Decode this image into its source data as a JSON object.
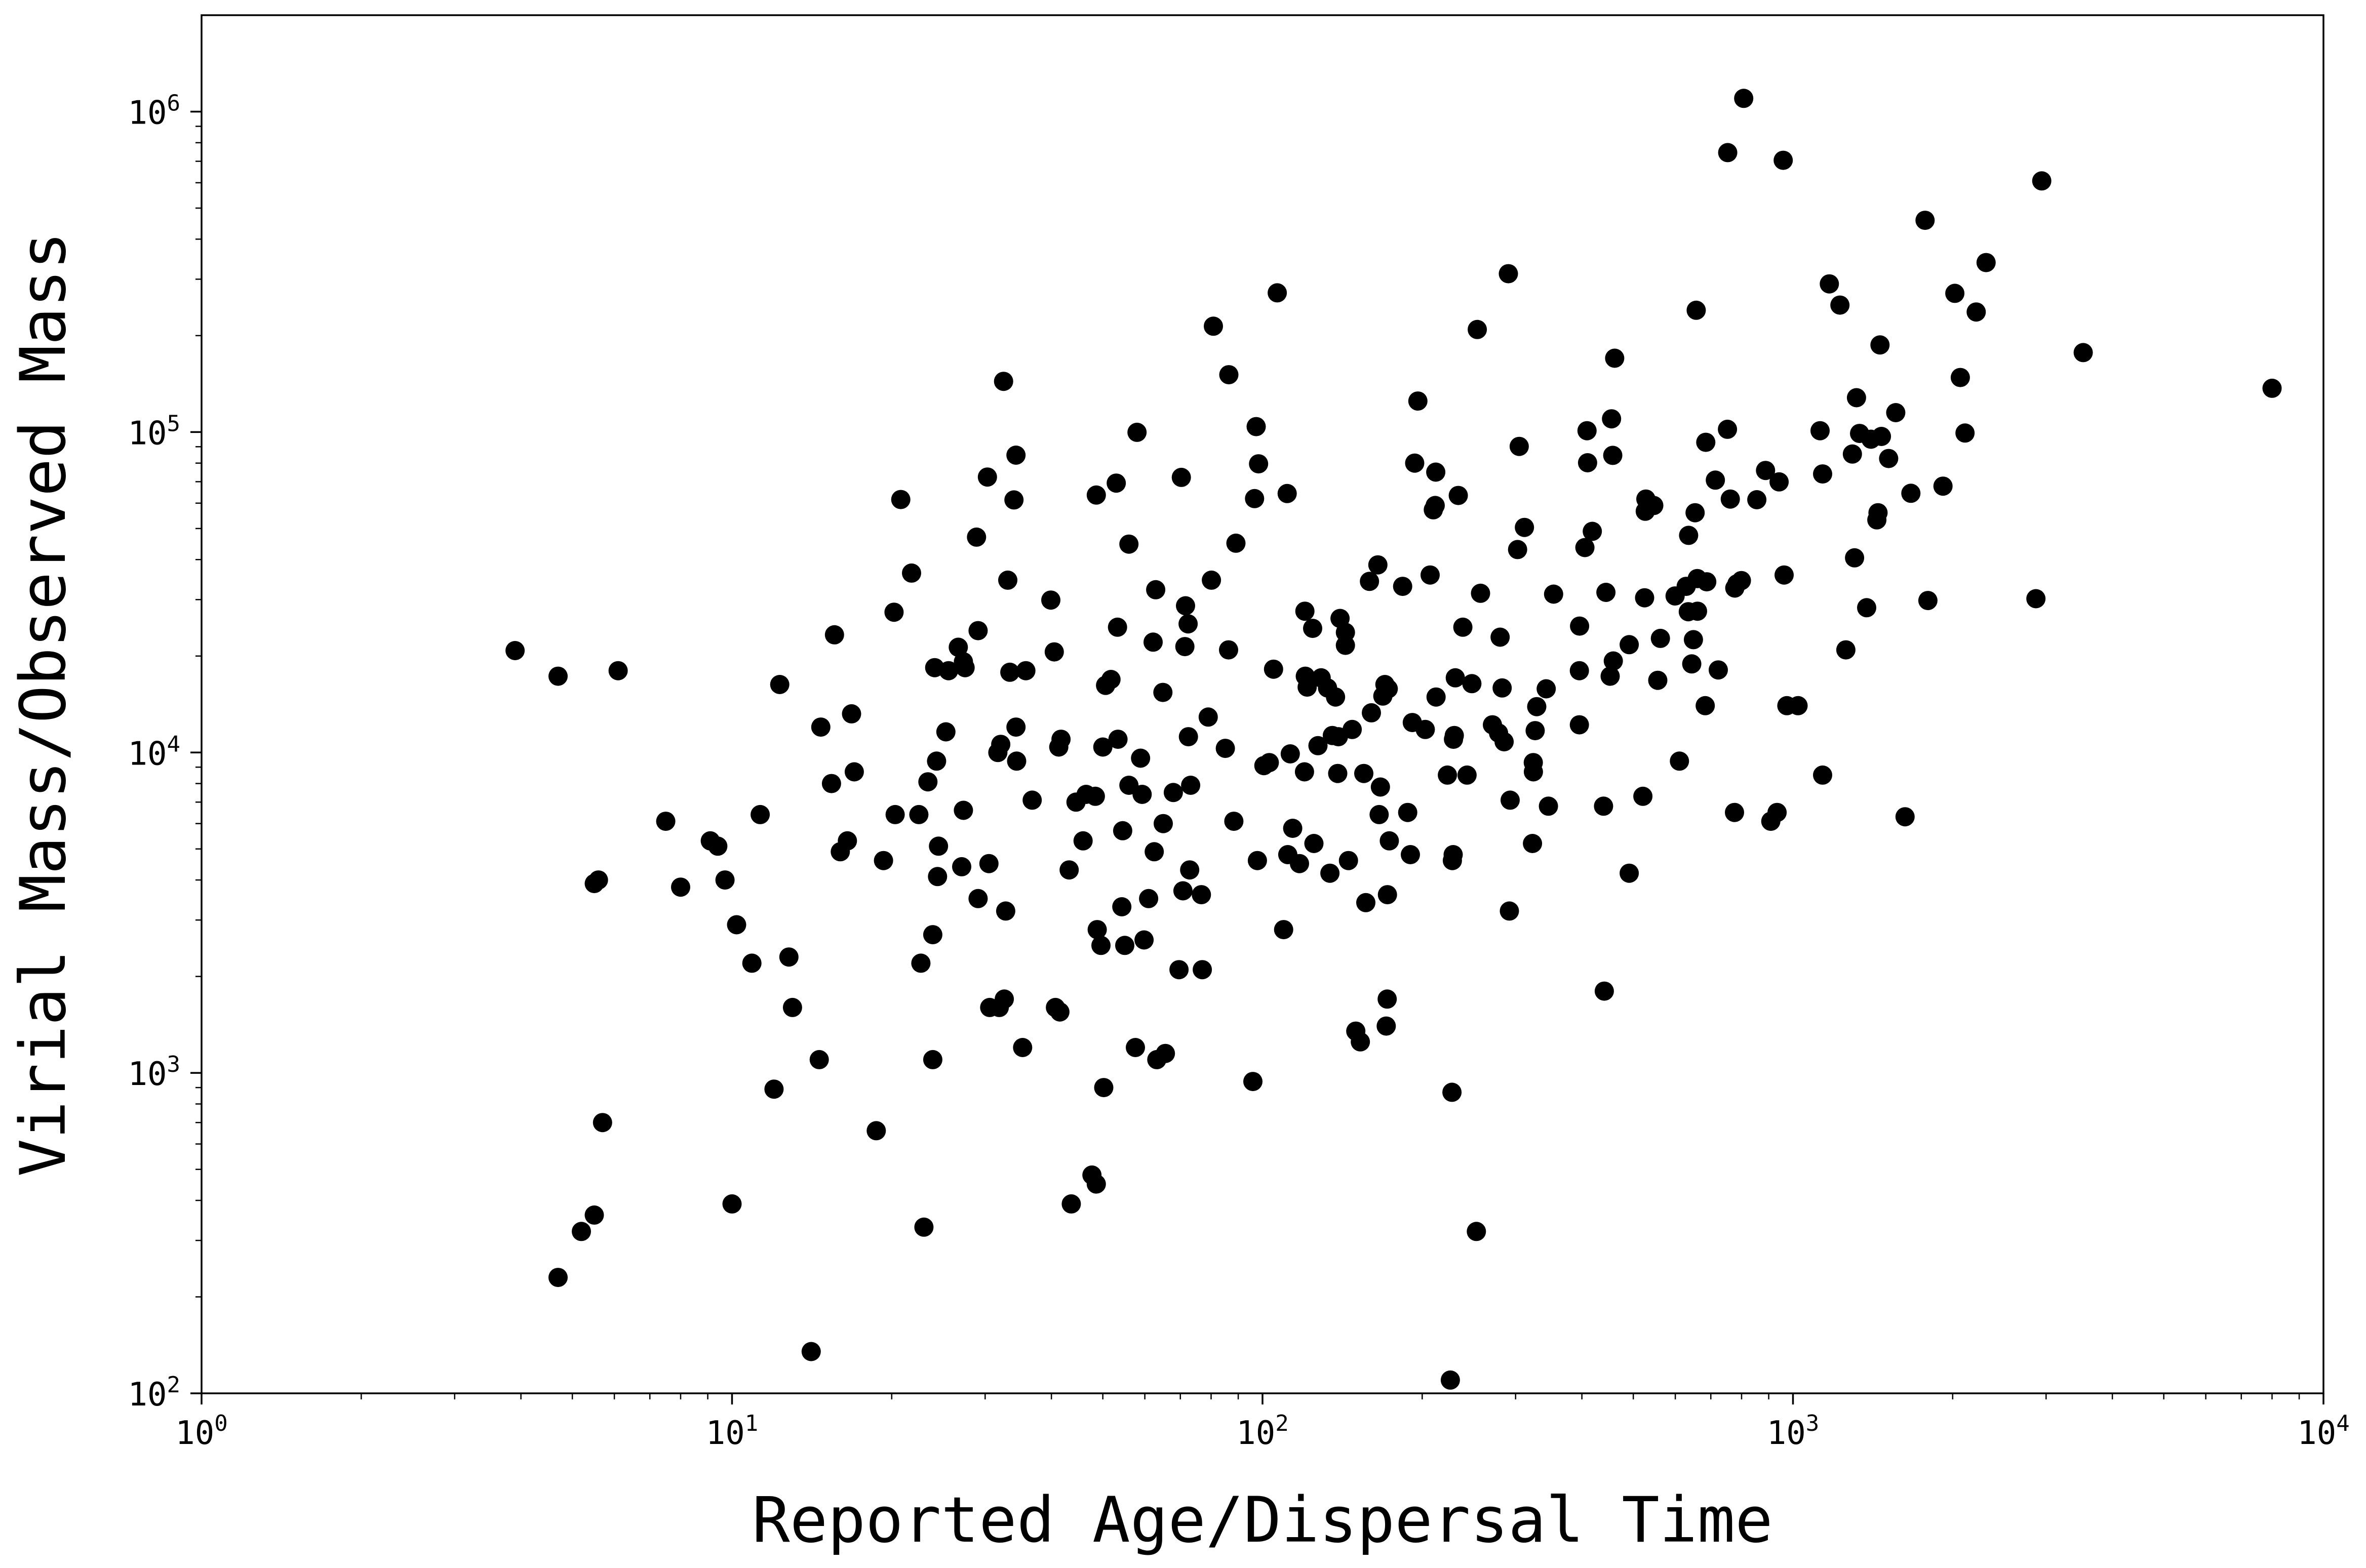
{
  "chart_data": {
    "type": "scatter",
    "title": "",
    "xlabel": "Reported Age/Dispersal Time",
    "ylabel": "Virial Mass/Observed Mass",
    "xscale": "log",
    "yscale": "log",
    "xlim": [
      1,
      10000
    ],
    "ylim": [
      100,
      2000000
    ],
    "grid": false,
    "marker_color": "#000000",
    "x_ticks": [
      {
        "base": "10",
        "exp": "0"
      },
      {
        "base": "10",
        "exp": "1"
      },
      {
        "base": "10",
        "exp": "2"
      },
      {
        "base": "10",
        "exp": "3"
      },
      {
        "base": "10",
        "exp": "4"
      }
    ],
    "y_ticks": [
      {
        "base": "10",
        "exp": "2"
      },
      {
        "base": "10",
        "exp": "3"
      },
      {
        "base": "10",
        "exp": "4"
      },
      {
        "base": "10",
        "exp": "5"
      },
      {
        "base": "10",
        "exp": "6"
      }
    ],
    "points": [
      [
        3.9,
        20800
      ],
      [
        4.7,
        17300
      ],
      [
        6.1,
        18000
      ],
      [
        4.7,
        230
      ],
      [
        5.2,
        320
      ],
      [
        5.5,
        360
      ],
      [
        5.6,
        4000
      ],
      [
        5.5,
        3900
      ],
      [
        5.7,
        700
      ],
      [
        7.5,
        6100
      ],
      [
        8.0,
        3800
      ],
      [
        9.1,
        5300
      ],
      [
        9.4,
        5100
      ],
      [
        9.7,
        4000
      ],
      [
        10.0,
        390
      ],
      [
        10.2,
        2900
      ],
      [
        10.9,
        2200
      ],
      [
        11.3,
        6400
      ],
      [
        12.0,
        890
      ],
      [
        12.3,
        16300
      ],
      [
        12.8,
        2300
      ],
      [
        13.0,
        1600
      ],
      [
        14.1,
        135
      ],
      [
        14.6,
        1100
      ],
      [
        14.7,
        12000
      ],
      [
        15.4,
        8000
      ],
      [
        15.6,
        23300
      ],
      [
        16.0,
        4900
      ],
      [
        16.5,
        5300
      ],
      [
        16.8,
        13200
      ],
      [
        17.0,
        8700
      ],
      [
        18.7,
        660
      ],
      [
        19.3,
        4600
      ],
      [
        20.2,
        27400
      ],
      [
        20.3,
        6400
      ],
      [
        20.8,
        61600
      ],
      [
        21.8,
        36300
      ],
      [
        22.5,
        6400
      ],
      [
        22.7,
        2200
      ],
      [
        23.0,
        330
      ],
      [
        23.4,
        8100
      ],
      [
        23.9,
        2700
      ],
      [
        23.9,
        1100
      ],
      [
        24.1,
        18400
      ],
      [
        24.3,
        9400
      ],
      [
        24.4,
        4100
      ],
      [
        24.5,
        5100
      ],
      [
        25.3,
        11600
      ],
      [
        25.6,
        18000
      ],
      [
        26.7,
        21300
      ],
      [
        27.1,
        4400
      ],
      [
        27.3,
        19200
      ],
      [
        27.3,
        6600
      ],
      [
        27.5,
        18400
      ],
      [
        28.9,
        47000
      ],
      [
        29.1,
        3500
      ],
      [
        29.1,
        24000
      ],
      [
        30.3,
        72400
      ],
      [
        30.5,
        4500
      ],
      [
        30.6,
        1600
      ],
      [
        31.7,
        10000
      ],
      [
        31.9,
        1600
      ],
      [
        32.1,
        10600
      ],
      [
        32.5,
        144000
      ],
      [
        32.6,
        1700
      ],
      [
        32.8,
        3200
      ],
      [
        33.1,
        34500
      ],
      [
        33.4,
        17800
      ],
      [
        34.0,
        61400
      ],
      [
        34.3,
        12000
      ],
      [
        34.3,
        84700
      ],
      [
        34.4,
        9400
      ],
      [
        35.3,
        1200
      ],
      [
        35.8,
        18000
      ],
      [
        36.8,
        7100
      ],
      [
        39.9,
        29900
      ],
      [
        40.5,
        20600
      ],
      [
        40.7,
        1600
      ],
      [
        41.3,
        10400
      ],
      [
        41.5,
        1550
      ],
      [
        41.7,
        11000
      ],
      [
        43.2,
        4300
      ],
      [
        43.6,
        390
      ],
      [
        44.5,
        7000
      ],
      [
        45.9,
        5300
      ],
      [
        46.5,
        7400
      ],
      [
        47.7,
        480
      ],
      [
        48.4,
        7300
      ],
      [
        48.6,
        450
      ],
      [
        48.6,
        63600
      ],
      [
        48.8,
        2800
      ],
      [
        49.6,
        2500
      ],
      [
        50.0,
        10400
      ],
      [
        50.2,
        900
      ],
      [
        50.6,
        16200
      ],
      [
        51.8,
        16900
      ],
      [
        53.0,
        69300
      ],
      [
        53.3,
        24600
      ],
      [
        53.4,
        11000
      ],
      [
        54.3,
        3300
      ],
      [
        54.5,
        5700
      ],
      [
        55.0,
        2500
      ],
      [
        56.0,
        44700
      ],
      [
        56.0,
        7900
      ],
      [
        57.6,
        1200
      ],
      [
        58.0,
        99800
      ],
      [
        58.9,
        9600
      ],
      [
        59.3,
        7400
      ],
      [
        59.8,
        2600
      ],
      [
        61.0,
        3500
      ],
      [
        62.2,
        22100
      ],
      [
        62.5,
        4900
      ],
      [
        62.9,
        32200
      ],
      [
        63.2,
        1100
      ],
      [
        64.9,
        15400
      ],
      [
        65.0,
        6000
      ],
      [
        65.6,
        1150
      ],
      [
        67.9,
        7500
      ],
      [
        69.6,
        2100
      ],
      [
        70.3,
        72200
      ],
      [
        70.8,
        3700
      ],
      [
        71.4,
        21400
      ],
      [
        71.6,
        28700
      ],
      [
        72.4,
        25200
      ],
      [
        72.5,
        11200
      ],
      [
        72.9,
        4300
      ],
      [
        73.2,
        7900
      ],
      [
        76.7,
        3600
      ],
      [
        77.0,
        2100
      ],
      [
        79.0,
        12900
      ],
      [
        80.1,
        34500
      ],
      [
        80.8,
        214000
      ],
      [
        85.1,
        10300
      ],
      [
        86.3,
        20900
      ],
      [
        86.4,
        151000
      ],
      [
        88.3,
        6100
      ],
      [
        89.1,
        45000
      ],
      [
        95.9,
        940
      ],
      [
        96.6,
        62000
      ],
      [
        97.3,
        104000
      ],
      [
        97.8,
        4600
      ],
      [
        98.3,
        79600
      ],
      [
        100.6,
        9100
      ],
      [
        103.0,
        9300
      ],
      [
        104.9,
        18200
      ],
      [
        106.6,
        272000
      ],
      [
        109.6,
        2800
      ],
      [
        111.3,
        64300
      ],
      [
        111.6,
        4800
      ],
      [
        112.8,
        9900
      ],
      [
        114.0,
        5800
      ],
      [
        117.4,
        4500
      ],
      [
        120.0,
        8700
      ],
      [
        120.2,
        27600
      ],
      [
        120.4,
        17300
      ],
      [
        121.4,
        16000
      ],
      [
        124.3,
        24400
      ],
      [
        125.0,
        5200
      ],
      [
        127.2,
        10500
      ],
      [
        129.0,
        17100
      ],
      [
        132.6,
        15900
      ],
      [
        134.0,
        4200
      ],
      [
        135.4,
        11300
      ],
      [
        137.3,
        14900
      ],
      [
        138.6,
        8600
      ],
      [
        139.0,
        11200
      ],
      [
        140.0,
        26200
      ],
      [
        143.3,
        21600
      ],
      [
        143.3,
        23700
      ],
      [
        145.2,
        4600
      ],
      [
        147.6,
        11800
      ],
      [
        149.9,
        1350
      ],
      [
        152.9,
        1250
      ],
      [
        155.2,
        8600
      ],
      [
        156.6,
        3400
      ],
      [
        159.1,
        34200
      ],
      [
        160.4,
        13300
      ],
      [
        165.0,
        38500
      ],
      [
        165.9,
        6400
      ],
      [
        166.8,
        7800
      ],
      [
        168.6,
        15000
      ],
      [
        170.1,
        16300
      ],
      [
        171.1,
        1400
      ],
      [
        171.8,
        1700
      ],
      [
        172.0,
        3600
      ],
      [
        172.6,
        15800
      ],
      [
        173.4,
        5300
      ],
      [
        183.7,
        33000
      ],
      [
        187.8,
        6500
      ],
      [
        190.0,
        4800
      ],
      [
        191.6,
        12400
      ],
      [
        193.6,
        80000
      ],
      [
        196.3,
        125000
      ],
      [
        202.7,
        11800
      ],
      [
        207.0,
        35800
      ],
      [
        209.9,
        57200
      ],
      [
        211.6,
        59000
      ],
      [
        212.1,
        75000
      ],
      [
        212.4,
        14900
      ],
      [
        223.1,
        8500
      ],
      [
        226.0,
        110
      ],
      [
        227.6,
        870
      ],
      [
        228.0,
        4600
      ],
      [
        228.8,
        4800
      ],
      [
        229.1,
        11000
      ],
      [
        229.9,
        11300
      ],
      [
        230.9,
        17100
      ],
      [
        233.9,
        63400
      ],
      [
        238.6,
        24600
      ],
      [
        243.0,
        8500
      ],
      [
        248.1,
        16400
      ],
      [
        253.0,
        320
      ],
      [
        254.0,
        209000
      ],
      [
        257.6,
        31400
      ],
      [
        271.3,
        12200
      ],
      [
        278.6,
        11500
      ],
      [
        280.5,
        22900
      ],
      [
        283.0,
        15900
      ],
      [
        285.4,
        10800
      ],
      [
        290.7,
        312000
      ],
      [
        292.0,
        3200
      ],
      [
        293.0,
        7100
      ],
      [
        302.6,
        43000
      ],
      [
        304.7,
        90200
      ],
      [
        311.7,
        50400
      ],
      [
        322.8,
        5200
      ],
      [
        323.9,
        9300
      ],
      [
        324.1,
        8700
      ],
      [
        326.6,
        11700
      ],
      [
        328.8,
        13900
      ],
      [
        342.6,
        15800
      ],
      [
        345.9,
        6800
      ],
      [
        353.8,
        31200
      ],
      [
        395.7,
        12200
      ],
      [
        395.7,
        18000
      ],
      [
        396.0,
        24800
      ],
      [
        405.3,
        43600
      ],
      [
        409.0,
        101000
      ],
      [
        410.0,
        80200
      ],
      [
        418.5,
        49000
      ],
      [
        439.4,
        6800
      ],
      [
        440.9,
        1800
      ],
      [
        444.0,
        31600
      ],
      [
        452.2,
        17300
      ],
      [
        454.9,
        110000
      ],
      [
        457.3,
        84600
      ],
      [
        458.4,
        19300
      ],
      [
        461.2,
        170000
      ],
      [
        491.2,
        21700
      ],
      [
        491.2,
        4200
      ],
      [
        521.2,
        7300
      ],
      [
        525.2,
        30400
      ],
      [
        526.7,
        56600
      ],
      [
        528.0,
        61800
      ],
      [
        546.5,
        59000
      ],
      [
        556.0,
        16800
      ],
      [
        562.4,
        22700
      ],
      [
        599.4,
        30800
      ],
      [
        610.9,
        9400
      ],
      [
        629.0,
        33000
      ],
      [
        634.8,
        27500
      ],
      [
        635.7,
        47600
      ],
      [
        644.4,
        18900
      ],
      [
        649.1,
        22500
      ],
      [
        653.8,
        56000
      ],
      [
        657.0,
        240000
      ],
      [
        660.1,
        34900
      ],
      [
        660.8,
        27600
      ],
      [
        683.2,
        14000
      ],
      [
        684.8,
        92900
      ],
      [
        687.7,
        34100
      ],
      [
        714.0,
        70800
      ],
      [
        723.1,
        18100
      ],
      [
        752.4,
        102000
      ],
      [
        753.2,
        745000
      ],
      [
        761.7,
        61800
      ],
      [
        775.8,
        6500
      ],
      [
        776.8,
        32600
      ],
      [
        784.0,
        33600
      ],
      [
        799.3,
        34400
      ],
      [
        807.4,
        1100000
      ],
      [
        854.8,
        61500
      ],
      [
        887.7,
        75900
      ],
      [
        908.3,
        6100
      ],
      [
        933.3,
        6500
      ],
      [
        941.6,
        69900
      ],
      [
        958.5,
        705000
      ],
      [
        962.3,
        35800
      ],
      [
        973.7,
        14000
      ],
      [
        1022.2,
        14000
      ],
      [
        1124.8,
        101000
      ],
      [
        1137.2,
        74000
      ],
      [
        1137.2,
        8500
      ],
      [
        1171.0,
        290000
      ],
      [
        1226.0,
        249000
      ],
      [
        1257.9,
        20900
      ],
      [
        1294.0,
        85400
      ],
      [
        1306.5,
        40500
      ],
      [
        1317.4,
        128000
      ],
      [
        1335.1,
        99000
      ],
      [
        1376.8,
        28300
      ],
      [
        1403.0,
        95000
      ],
      [
        1439.1,
        53200
      ],
      [
        1446.4,
        56000
      ],
      [
        1458.9,
        187000
      ],
      [
        1468.0,
        96900
      ],
      [
        1514.6,
        82700
      ],
      [
        1562.2,
        115000
      ],
      [
        1626.4,
        6300
      ],
      [
        1668.0,
        64400
      ],
      [
        1774.2,
        458000
      ],
      [
        1796.1,
        29800
      ],
      [
        1917.6,
        67800
      ],
      [
        2019.0,
        271000
      ],
      [
        2067.5,
        148000
      ],
      [
        2110.0,
        99300
      ],
      [
        2214.9,
        237000
      ],
      [
        2312.2,
        338000
      ],
      [
        2870.4,
        30200
      ],
      [
        2943.9,
        608000
      ],
      [
        3524.3,
        177000
      ],
      [
        8000.0,
        137000
      ]
    ]
  }
}
